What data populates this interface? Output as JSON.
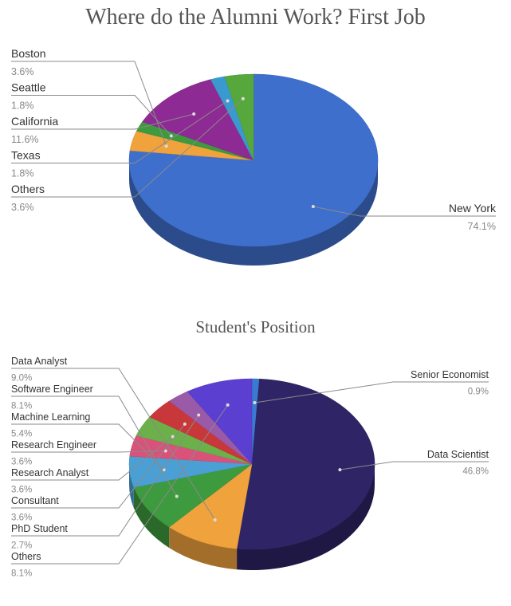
{
  "colors": {
    "bg": "#ffffff",
    "leader": "#8a8a8a",
    "name_text": "#333333",
    "pct_text": "#888888"
  },
  "chart_data": [
    {
      "type": "pie",
      "title": "Where do the Alumni Work? First Job",
      "variant": "3d",
      "slices": [
        {
          "label": "New York",
          "value": 74.1,
          "pct_label": "74.1%",
          "color": "#3f6fcc",
          "side": "right"
        },
        {
          "label": "Boston",
          "value": 3.6,
          "pct_label": "3.6%",
          "color": "#f0a23c",
          "side": "left"
        },
        {
          "label": "Seattle",
          "value": 1.8,
          "pct_label": "1.8%",
          "color": "#3e9a3e",
          "side": "left"
        },
        {
          "label": "California",
          "value": 11.6,
          "pct_label": "11.6%",
          "color": "#8e2a93",
          "side": "left"
        },
        {
          "label": "Texas",
          "value": 1.8,
          "pct_label": "1.8%",
          "color": "#3a9ad0",
          "side": "left"
        },
        {
          "label": "Others",
          "value": 3.6,
          "pct_label": "3.6%",
          "color": "#56a83c",
          "side": "left"
        }
      ]
    },
    {
      "type": "pie",
      "title": "Student's Position",
      "variant": "3d",
      "slices": [
        {
          "label": "Senior Economist",
          "value": 0.9,
          "pct_label": "0.9%",
          "color": "#3a7ad0",
          "side": "right"
        },
        {
          "label": "Data Scientist",
          "value": 46.8,
          "pct_label": "46.8%",
          "color": "#2e2466",
          "side": "right"
        },
        {
          "label": "Data Analyst",
          "value": 9.0,
          "pct_label": "9.0%",
          "color": "#f0a23c",
          "side": "left"
        },
        {
          "label": "Software Engineer",
          "value": 8.1,
          "pct_label": "8.1%",
          "color": "#3e9a3e",
          "side": "left"
        },
        {
          "label": "Machine Learning",
          "value": 5.4,
          "pct_label": "5.4%",
          "color": "#4aa0d4",
          "side": "left"
        },
        {
          "label": "Research Engineer",
          "value": 3.6,
          "pct_label": "3.6%",
          "color": "#d9527a",
          "side": "left"
        },
        {
          "label": "Research Analyst",
          "value": 3.6,
          "pct_label": "3.6%",
          "color": "#6cb04a",
          "side": "left"
        },
        {
          "label": "Consultant",
          "value": 3.6,
          "pct_label": "3.6%",
          "color": "#c8383a",
          "side": "left"
        },
        {
          "label": "PhD Student",
          "value": 2.7,
          "pct_label": "2.7%",
          "color": "#9a5aa8",
          "side": "left"
        },
        {
          "label": "Others",
          "value": 8.1,
          "pct_label": "8.1%",
          "color": "#5a3fd0",
          "side": "left"
        }
      ]
    }
  ]
}
